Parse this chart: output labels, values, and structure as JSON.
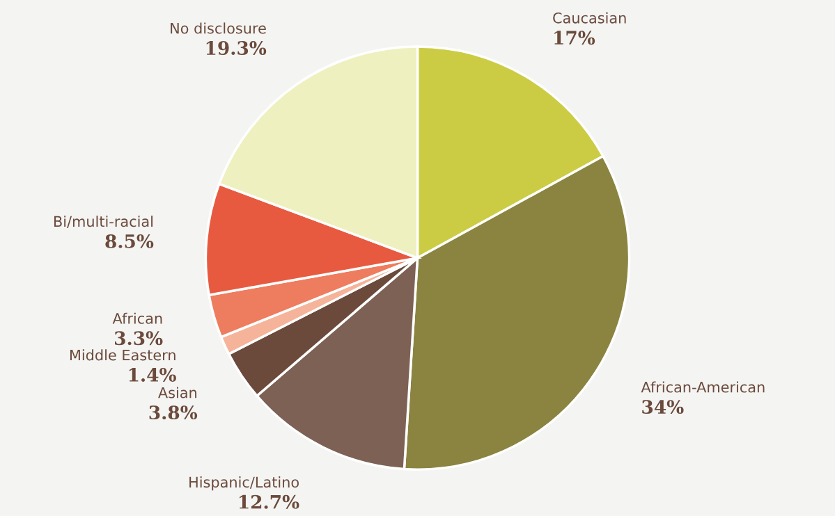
{
  "chart_data": {
    "type": "pie",
    "categories": [
      "Caucasian",
      "African-American",
      "Hispanic/Latino",
      "Asian",
      "Middle Eastern",
      "African",
      "Bi/multi-racial",
      "No disclosure"
    ],
    "values": [
      17,
      34,
      12.7,
      3.8,
      1.4,
      3.3,
      8.5,
      19.3
    ],
    "colors": [
      "#cccc44",
      "#8a8440",
      "#7d6154",
      "#6b4a3c",
      "#f5b49a",
      "#ee7c5e",
      "#e85a40",
      "#eef0bf"
    ],
    "value_labels": [
      "17%",
      "34%",
      "12.7%",
      "3.8%",
      "1.4%",
      "3.3%",
      "8.5%",
      "19.3%"
    ]
  }
}
